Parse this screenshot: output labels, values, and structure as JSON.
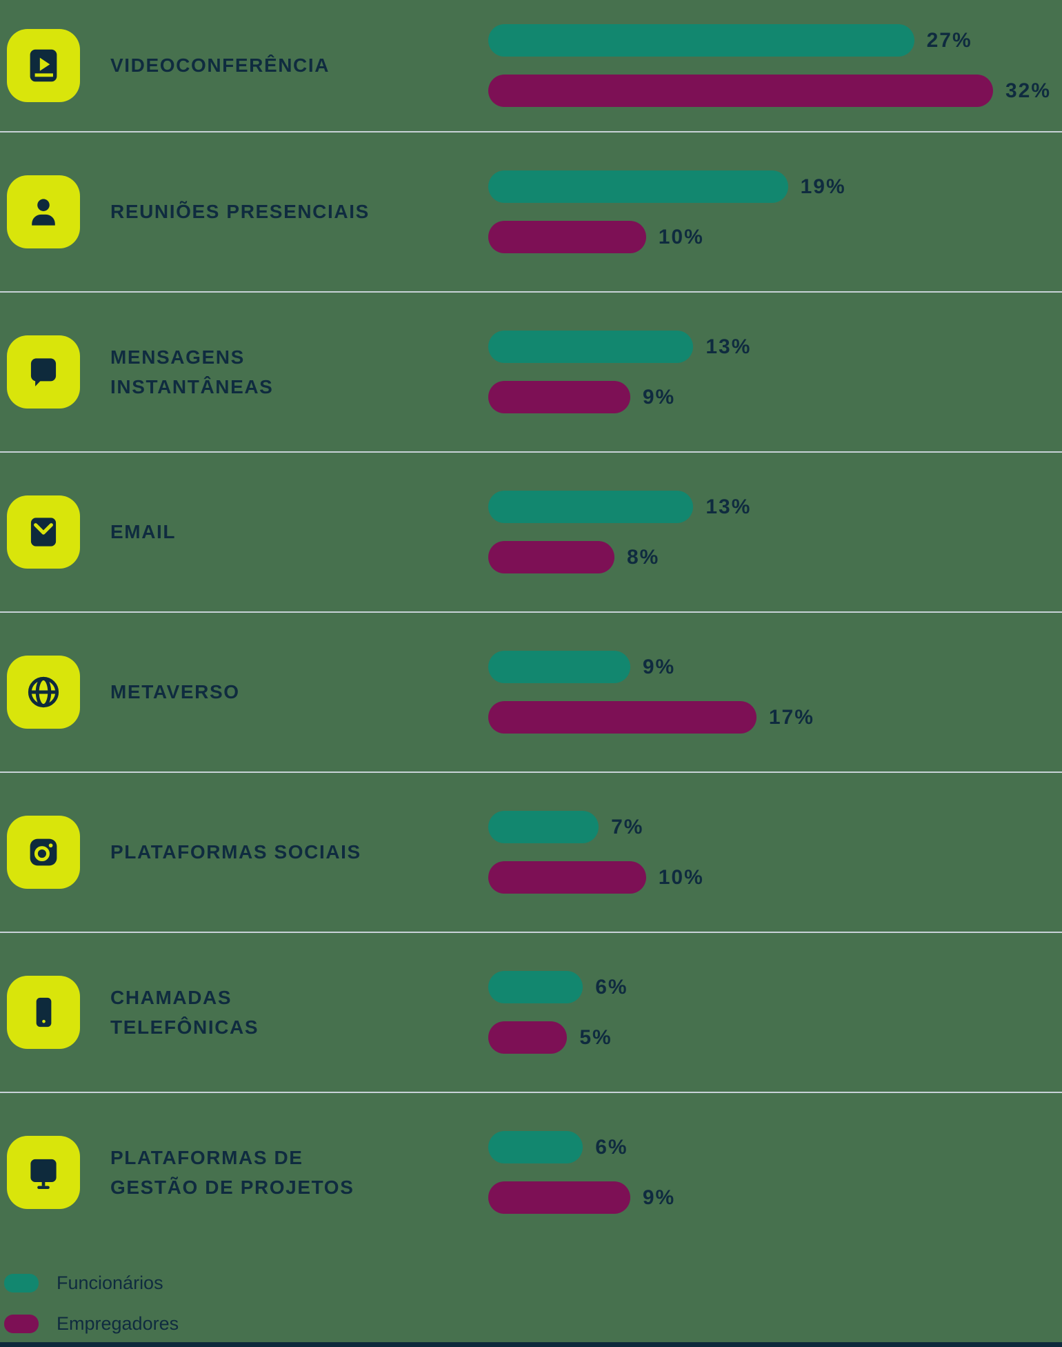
{
  "chart_data": {
    "type": "bar",
    "orientation": "horizontal",
    "value_unit": "%",
    "xlim": [
      0,
      32
    ],
    "grid": false,
    "legend_position": "bottom-left",
    "categories": [
      "Videoconferência",
      "Reuniões presenciais",
      "Mensagens instantâneas",
      "Email",
      "Metaverso",
      "Plataformas sociais",
      "Chamadas telefônicas",
      "Plataformas de gestão de projetos"
    ],
    "series": [
      {
        "name": "Funcionários",
        "color": "#12876F",
        "values": [
          27,
          19,
          13,
          13,
          9,
          7,
          6,
          6
        ]
      },
      {
        "name": "Empregadores",
        "color": "#7D1055",
        "values": [
          32,
          10,
          9,
          8,
          17,
          10,
          5,
          9
        ]
      }
    ],
    "rows": [
      {
        "label": "VIDEOCONFERÊNCIA",
        "icon": "video-play-icon",
        "bars": [
          {
            "value": 27,
            "label": "27%"
          },
          {
            "value": 32,
            "label": "32%"
          }
        ]
      },
      {
        "label": "REUNIÕES PRESENCIAIS",
        "icon": "person-icon",
        "bars": [
          {
            "value": 19,
            "label": "19%"
          },
          {
            "value": 10,
            "label": "10%"
          }
        ]
      },
      {
        "label": "MENSAGENS\nINSTANTÂNEAS",
        "icon": "chat-bubble-icon",
        "bars": [
          {
            "value": 13,
            "label": "13%"
          },
          {
            "value": 9,
            "label": "9%"
          }
        ]
      },
      {
        "label": "EMAIL",
        "icon": "email-icon",
        "bars": [
          {
            "value": 13,
            "label": "13%"
          },
          {
            "value": 8,
            "label": "8%"
          }
        ]
      },
      {
        "label": "METAVERSO",
        "icon": "globe-icon",
        "bars": [
          {
            "value": 9,
            "label": "9%"
          },
          {
            "value": 17,
            "label": "17%"
          }
        ]
      },
      {
        "label": "PLATAFORMAS SOCIAIS",
        "icon": "camera-icon",
        "bars": [
          {
            "value": 7,
            "label": "7%"
          },
          {
            "value": 10,
            "label": "10%"
          }
        ]
      },
      {
        "label": "CHAMADAS\nTELEFÔNICAS",
        "icon": "phone-icon",
        "bars": [
          {
            "value": 6,
            "label": "6%"
          },
          {
            "value": 5,
            "label": "5%"
          }
        ]
      },
      {
        "label": "PLATAFORMAS DE\nGESTÃO DE PROJETOS",
        "icon": "monitor-icon",
        "bars": [
          {
            "value": 6,
            "label": "6%"
          },
          {
            "value": 9,
            "label": "9%"
          }
        ]
      }
    ]
  },
  "legend": {
    "items": [
      {
        "label": "Funcionários",
        "color": "#12876F"
      },
      {
        "label": "Empregadores",
        "color": "#7D1055"
      }
    ]
  },
  "colors": {
    "background": "#47714E",
    "bar_teal": "#12876F",
    "bar_magenta": "#7D1055",
    "icon_badge": "#D9E50B",
    "icon_glyph": "#0E2A3C",
    "text": "#0F2B3F",
    "divider": "#C9D2D8",
    "bottom_bar": "#0E2A3C"
  }
}
